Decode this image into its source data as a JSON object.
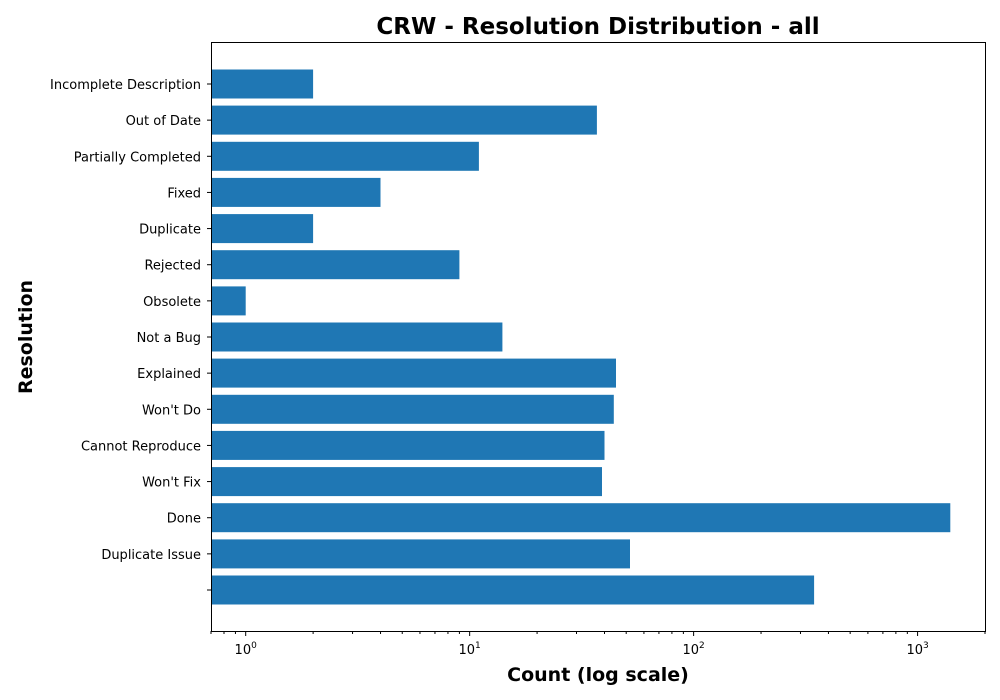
{
  "chart_data": {
    "type": "bar",
    "orientation": "horizontal",
    "title": "CRW - Resolution Distribution - all",
    "xlabel": "Count (log scale)",
    "ylabel": "Resolution",
    "xscale": "log",
    "xlim": [
      0.7,
      2000
    ],
    "xticks": [
      {
        "value": 1,
        "base": "10",
        "exp": "0"
      },
      {
        "value": 10,
        "base": "10",
        "exp": "1"
      },
      {
        "value": 100,
        "base": "10",
        "exp": "2"
      },
      {
        "value": 1000,
        "base": "10",
        "exp": "3"
      }
    ],
    "grid": false,
    "legend": "none",
    "bar_color": "#1f77b4",
    "categories": [
      "Incomplete Description",
      "Out of Date",
      "Partially Completed",
      "Fixed",
      "Duplicate",
      "Rejected",
      "Obsolete",
      "Not a Bug",
      "Explained",
      "Won't Do",
      "Cannot Reproduce",
      "Won't Fix",
      "Done",
      "Duplicate Issue",
      ""
    ],
    "values": [
      2,
      37,
      11,
      4,
      2,
      9,
      1,
      14,
      45,
      44,
      40,
      39,
      1400,
      52,
      345
    ]
  }
}
